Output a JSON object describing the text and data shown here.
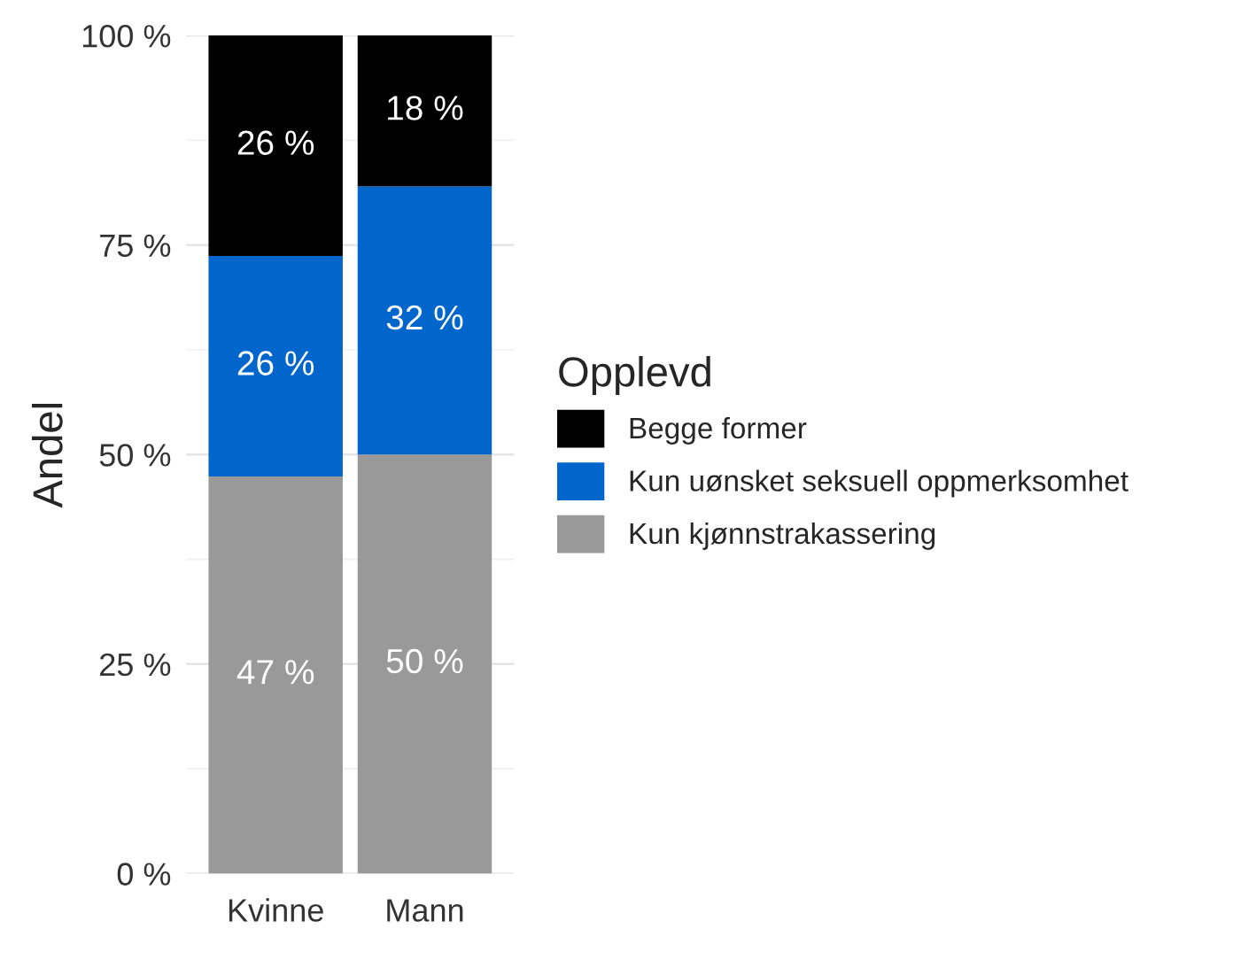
{
  "chart_data": {
    "type": "bar",
    "stacked": true,
    "ylabel": "Andel",
    "legend_title": "Opplevd",
    "legend": "right",
    "grid": "y",
    "categories": [
      "Kvinne",
      "Mann"
    ],
    "series": [
      {
        "name": "Kun kjønnstrakassering",
        "color": "#999999",
        "values": [
          47.4,
          50
        ],
        "value_labels": [
          "47 %",
          "50 %"
        ]
      },
      {
        "name": "Kun uønsket seksuell oppmerksomhet",
        "color": "#0066cc",
        "values": [
          26.3,
          32
        ],
        "value_labels": [
          "26 %",
          "32 %"
        ]
      },
      {
        "name": "Begge former",
        "color": "#000000",
        "values": [
          26.3,
          18
        ],
        "value_labels": [
          "26 %",
          "18 %"
        ]
      }
    ],
    "ylim": [
      0,
      100
    ],
    "yticks": [
      {
        "value": 0,
        "label": "0 %"
      },
      {
        "value": 25,
        "label": "25 %"
      },
      {
        "value": 50,
        "label": "50 %"
      },
      {
        "value": 75,
        "label": "75 %"
      },
      {
        "value": 100,
        "label": "100 %"
      }
    ]
  }
}
